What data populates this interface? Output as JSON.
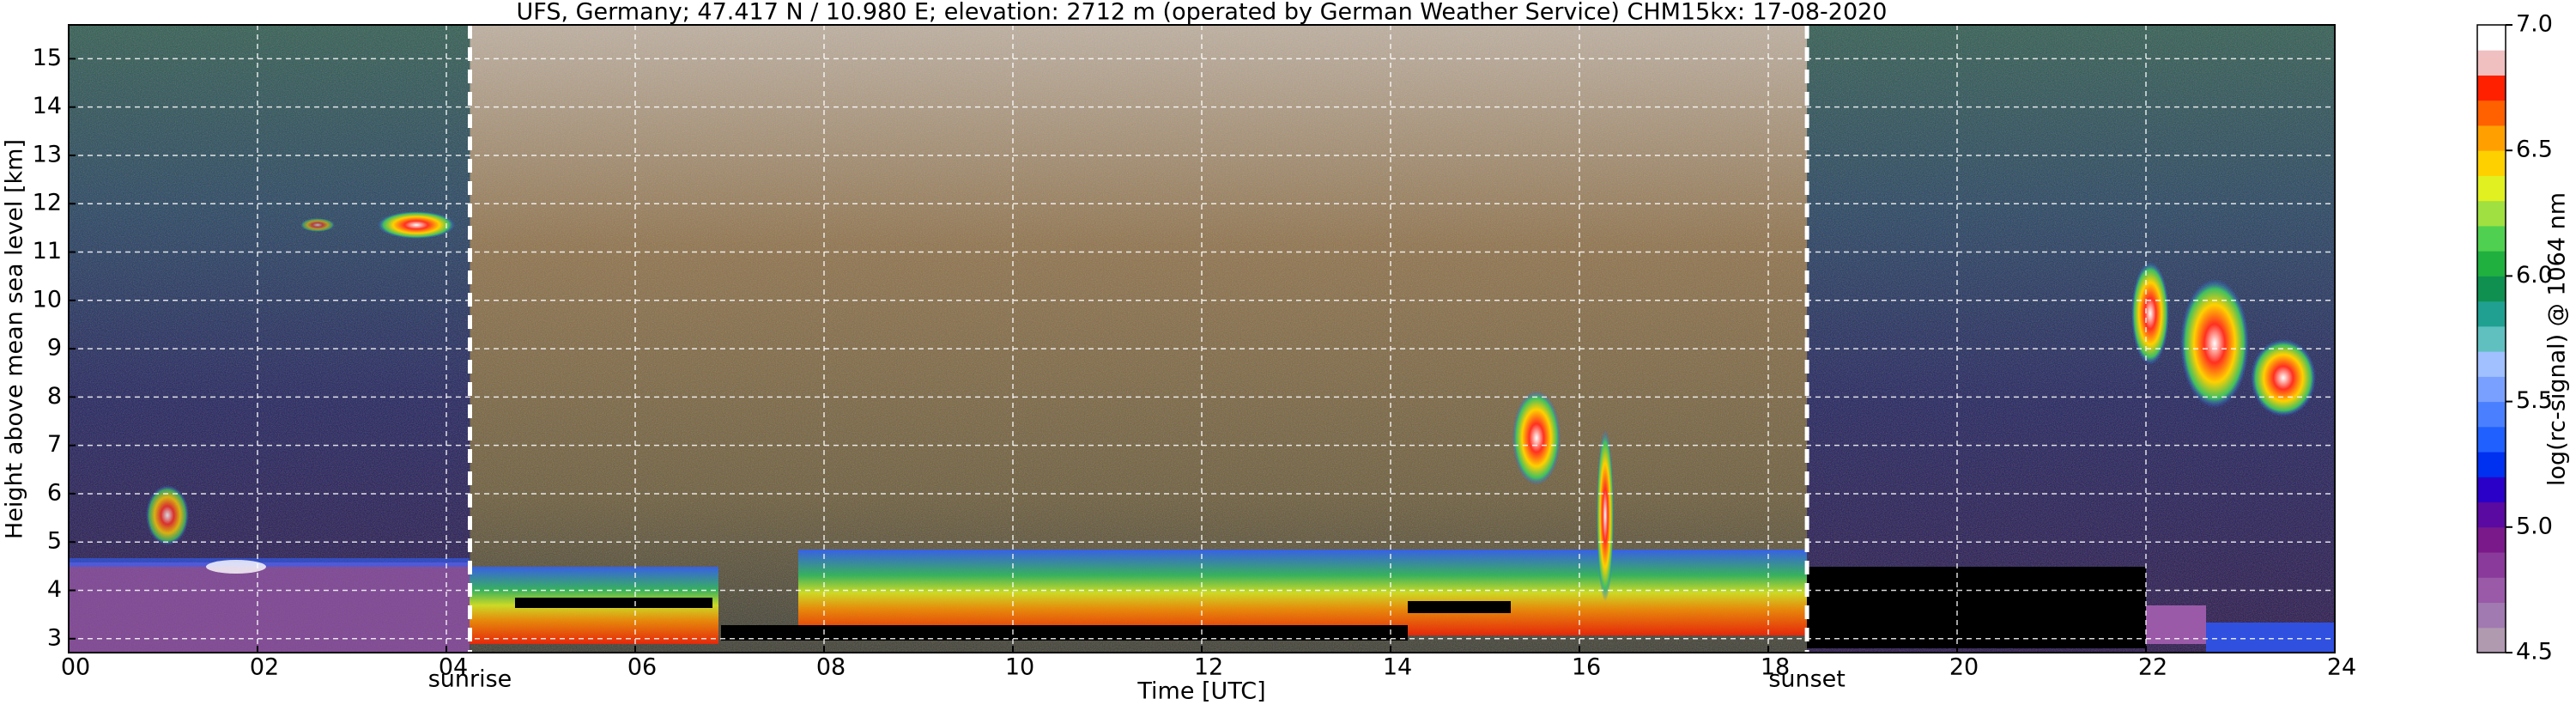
{
  "chart_data": {
    "type": "heatmap",
    "title": "UFS, Germany; 47.417 N / 10.980 E; elevation: 2712 m  (operated by German Weather Service)    CHM15kx: 17-08-2020",
    "x_label": "Time [UTC]",
    "y_label": "Height above mean sea level [km]",
    "xlim": [
      0,
      24
    ],
    "xticks": [
      {
        "value": 0,
        "label": "00"
      },
      {
        "value": 2,
        "label": "02"
      },
      {
        "value": 4,
        "label": "04"
      },
      {
        "value": 6,
        "label": "06"
      },
      {
        "value": 8,
        "label": "08"
      },
      10,
      12,
      14,
      16,
      18,
      20,
      22,
      24
    ],
    "ylim": [
      2.712,
      15.7
    ],
    "yticks": [
      3,
      4,
      5,
      6,
      7,
      8,
      9,
      10,
      11,
      12,
      13,
      14,
      15
    ],
    "grid": true,
    "annotations": [
      {
        "text": "sunrise",
        "x": 4.25
      },
      {
        "text": "sunset",
        "x": 18.41
      }
    ],
    "colorbar": {
      "label": "log(rc-signal) @ 1064 nm",
      "lim": [
        4.5,
        7.0
      ],
      "ticks": [
        4.5,
        {
          "value": 5,
          "label": "5.0"
        },
        5.5,
        {
          "value": 6,
          "label": "6.0"
        },
        6.5,
        {
          "value": 7,
          "label": "7.0"
        }
      ],
      "colors": [
        "#b09ab0",
        "#a07ab0",
        "#9a5aa8",
        "#8a3a9a",
        "#7a1a8a",
        "#5a0aa0",
        "#2a00c8",
        "#0030f0",
        "#2060ff",
        "#4a80ff",
        "#7aa0ff",
        "#a0c0ff",
        "#60c0c0",
        "#20a090",
        "#109050",
        "#20b040",
        "#50d050",
        "#a0e040",
        "#e0f020",
        "#ffd000",
        "#ffa000",
        "#ff6000",
        "#ff2000",
        "#f0c0c0",
        "#ffffff"
      ]
    }
  }
}
